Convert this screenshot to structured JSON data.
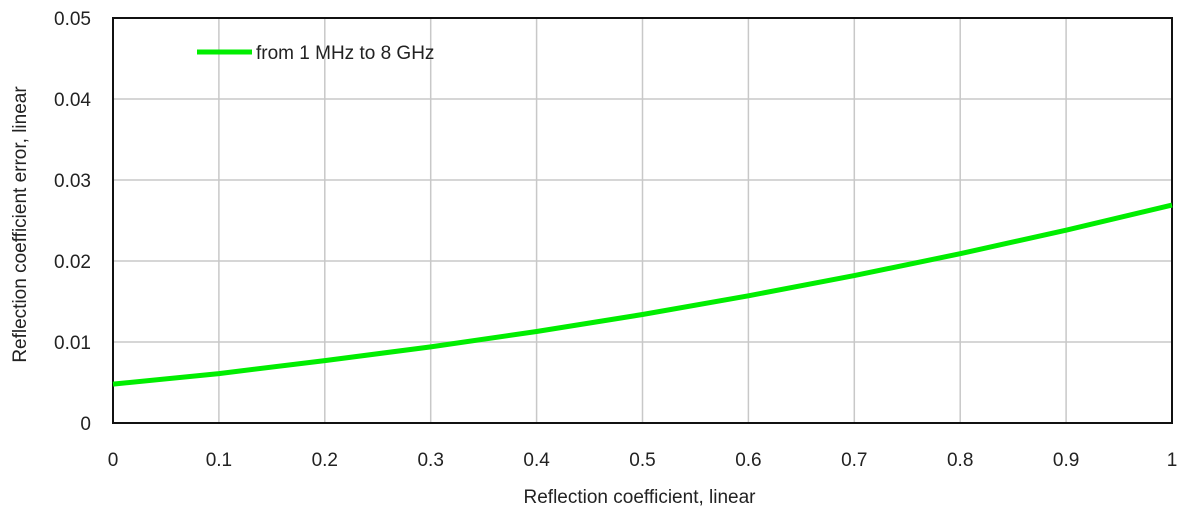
{
  "chart_data": {
    "type": "line",
    "title": "",
    "xlabel": "Reflection coefficient, linear",
    "ylabel": "Reflection coefficient error, linear",
    "xlim": [
      0,
      1
    ],
    "ylim": [
      0,
      0.05
    ],
    "x_ticks": [
      "0",
      "0.1",
      "0.2",
      "0.3",
      "0.4",
      "0.5",
      "0.6",
      "0.7",
      "0.8",
      "0.9",
      "1"
    ],
    "y_ticks": [
      "0",
      "0.01",
      "0.02",
      "0.03",
      "0.04",
      "0.05"
    ],
    "grid": true,
    "legend_position": "top-left",
    "series": [
      {
        "name": "from 1 MHz to 8 GHz",
        "color": "#00ee00",
        "x": [
          0,
          0.1,
          0.2,
          0.3,
          0.4,
          0.5,
          0.6,
          0.7,
          0.8,
          0.9,
          1.0
        ],
        "y": [
          0.0048,
          0.0061,
          0.0077,
          0.0094,
          0.0113,
          0.0134,
          0.0157,
          0.0182,
          0.0209,
          0.0238,
          0.0269
        ]
      }
    ]
  }
}
